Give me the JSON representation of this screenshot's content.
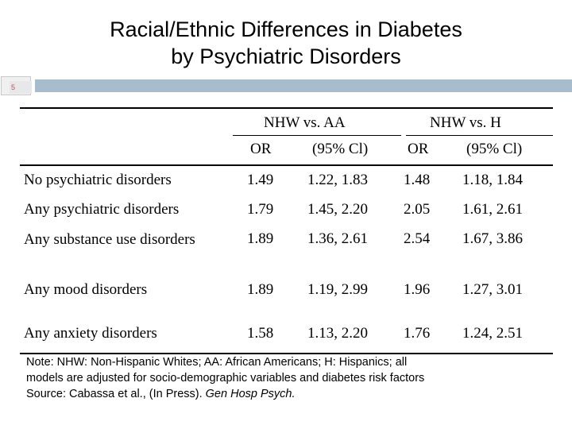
{
  "title": {
    "line1": "Racial/Ethnic Differences in Diabetes",
    "line2": "by Psychiatric Disorders"
  },
  "slide_number": "5",
  "colors": {
    "accent_bar": "#a7bccc",
    "slide_number": "#c0504d"
  },
  "table": {
    "groups": [
      "NHW vs. AA",
      "NHW vs. H"
    ],
    "subheaders": [
      "OR",
      "(95% Cl)",
      "OR",
      "(95% Cl)"
    ],
    "rows": [
      {
        "label": "No psychiatric disorders",
        "or1": "1.49",
        "ci1": "1.22, 1.83",
        "or2": "1.48",
        "ci2": "1.18, 1.84"
      },
      {
        "label": "Any psychiatric disorders",
        "or1": "1.79",
        "ci1": "1.45, 2.20",
        "or2": "2.05",
        "ci2": "1.61, 2.61"
      },
      {
        "label": "Any substance use disorders",
        "or1": "1.89",
        "ci1": "1.36, 2.61",
        "or2": "2.54",
        "ci2": "1.67, 3.86"
      },
      {
        "label": "Any mood disorders",
        "or1": "1.89",
        "ci1": "1.19,  2.99",
        "or2": "1.96",
        "ci2": "1.27, 3.01"
      },
      {
        "label": "Any anxiety disorders",
        "or1": "1.58",
        "ci1": "1.13,  2.20",
        "or2": "1.76",
        "ci2": "1.24, 2.51"
      }
    ]
  },
  "note": {
    "line1": "Note: NHW: Non-Hispanic Whites; AA: African Americans; H: Hispanics;  all",
    "line2": "models are adjusted for socio-demographic  variables and diabetes risk factors",
    "source_prefix": "Source: Cabassa et al., (In Press). ",
    "source_journal": "Gen Hosp Psych."
  }
}
